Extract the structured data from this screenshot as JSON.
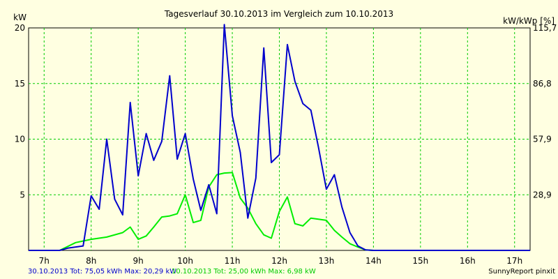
{
  "chart_data": {
    "type": "line",
    "title": "Tagesverlauf 30.10.2013 im Vergleich zum 10.10.2013",
    "ylabel_left": "kW",
    "ylabel_right": "kW/kWp [%]",
    "xlim": [
      6.67,
      17.33
    ],
    "ylim": [
      0,
      20
    ],
    "grid": true,
    "x_ticks": [
      {
        "value": 7,
        "label": "7h"
      },
      {
        "value": 8,
        "label": "8h"
      },
      {
        "value": 9,
        "label": "9h"
      },
      {
        "value": 10,
        "label": "10h"
      },
      {
        "value": 11,
        "label": "11h"
      },
      {
        "value": 12,
        "label": "12h"
      },
      {
        "value": 13,
        "label": "13h"
      },
      {
        "value": 14,
        "label": "14h"
      },
      {
        "value": 15,
        "label": "15h"
      },
      {
        "value": 16,
        "label": "16h"
      },
      {
        "value": 17,
        "label": "17h"
      }
    ],
    "y_ticks_left": [
      {
        "value": 5,
        "label": "5"
      },
      {
        "value": 10,
        "label": "10"
      },
      {
        "value": 15,
        "label": "15"
      },
      {
        "value": 20,
        "label": "20"
      }
    ],
    "y_ticks_right": [
      {
        "value": 5,
        "label": "28,9"
      },
      {
        "value": 10,
        "label": "57,9"
      },
      {
        "value": 15,
        "label": "86,8"
      },
      {
        "value": 20,
        "label": "115,7"
      }
    ],
    "series": [
      {
        "name": "30.10.2013 Tot: 75,05 kWh Max: 20,29 kW",
        "color": "#0000cc",
        "points": [
          [
            6.67,
            0
          ],
          [
            7.33,
            0
          ],
          [
            7.5,
            0.2
          ],
          [
            7.83,
            0.4
          ],
          [
            8.0,
            4.9
          ],
          [
            8.17,
            3.7
          ],
          [
            8.33,
            10.0
          ],
          [
            8.5,
            4.6
          ],
          [
            8.67,
            3.2
          ],
          [
            8.83,
            13.3
          ],
          [
            9.0,
            6.7
          ],
          [
            9.17,
            10.5
          ],
          [
            9.33,
            8.1
          ],
          [
            9.5,
            9.8
          ],
          [
            9.67,
            15.7
          ],
          [
            9.83,
            8.2
          ],
          [
            10.0,
            10.5
          ],
          [
            10.17,
            6.4
          ],
          [
            10.33,
            3.6
          ],
          [
            10.5,
            5.9
          ],
          [
            10.67,
            3.3
          ],
          [
            10.83,
            20.3
          ],
          [
            11.0,
            12.1
          ],
          [
            11.17,
            8.8
          ],
          [
            11.33,
            2.9
          ],
          [
            11.5,
            6.5
          ],
          [
            11.67,
            18.2
          ],
          [
            11.83,
            7.9
          ],
          [
            12.0,
            8.6
          ],
          [
            12.17,
            18.5
          ],
          [
            12.33,
            15.2
          ],
          [
            12.5,
            13.2
          ],
          [
            12.67,
            12.6
          ],
          [
            12.83,
            9.3
          ],
          [
            13.0,
            5.5
          ],
          [
            13.17,
            6.8
          ],
          [
            13.33,
            3.9
          ],
          [
            13.5,
            1.6
          ],
          [
            13.67,
            0.4
          ],
          [
            13.83,
            0.05
          ],
          [
            14.0,
            0
          ],
          [
            17.33,
            0
          ]
        ]
      },
      {
        "name": "10.10.2013 Tot: 25,00 kWh Max: 6,98 kW",
        "color": "#00ee00",
        "points": [
          [
            6.67,
            0
          ],
          [
            7.33,
            0
          ],
          [
            7.67,
            0.7
          ],
          [
            8.0,
            1.0
          ],
          [
            8.33,
            1.2
          ],
          [
            8.67,
            1.6
          ],
          [
            8.83,
            2.1
          ],
          [
            9.0,
            1.0
          ],
          [
            9.17,
            1.3
          ],
          [
            9.33,
            2.1
          ],
          [
            9.5,
            3.0
          ],
          [
            9.67,
            3.1
          ],
          [
            9.83,
            3.3
          ],
          [
            10.0,
            5.0
          ],
          [
            10.17,
            2.5
          ],
          [
            10.33,
            2.7
          ],
          [
            10.5,
            5.7
          ],
          [
            10.67,
            6.8
          ],
          [
            10.83,
            6.95
          ],
          [
            11.0,
            7.0
          ],
          [
            11.17,
            4.7
          ],
          [
            11.33,
            3.8
          ],
          [
            11.5,
            2.4
          ],
          [
            11.67,
            1.4
          ],
          [
            11.83,
            1.1
          ],
          [
            12.0,
            3.5
          ],
          [
            12.17,
            4.8
          ],
          [
            12.33,
            2.4
          ],
          [
            12.5,
            2.2
          ],
          [
            12.67,
            2.9
          ],
          [
            12.83,
            2.8
          ],
          [
            13.0,
            2.7
          ],
          [
            13.17,
            1.8
          ],
          [
            13.33,
            1.2
          ],
          [
            13.5,
            0.6
          ],
          [
            13.67,
            0.3
          ],
          [
            13.83,
            0.05
          ],
          [
            14.0,
            0
          ],
          [
            17.33,
            0
          ]
        ]
      }
    ],
    "footer_right": "SunnyReport pinxit"
  }
}
